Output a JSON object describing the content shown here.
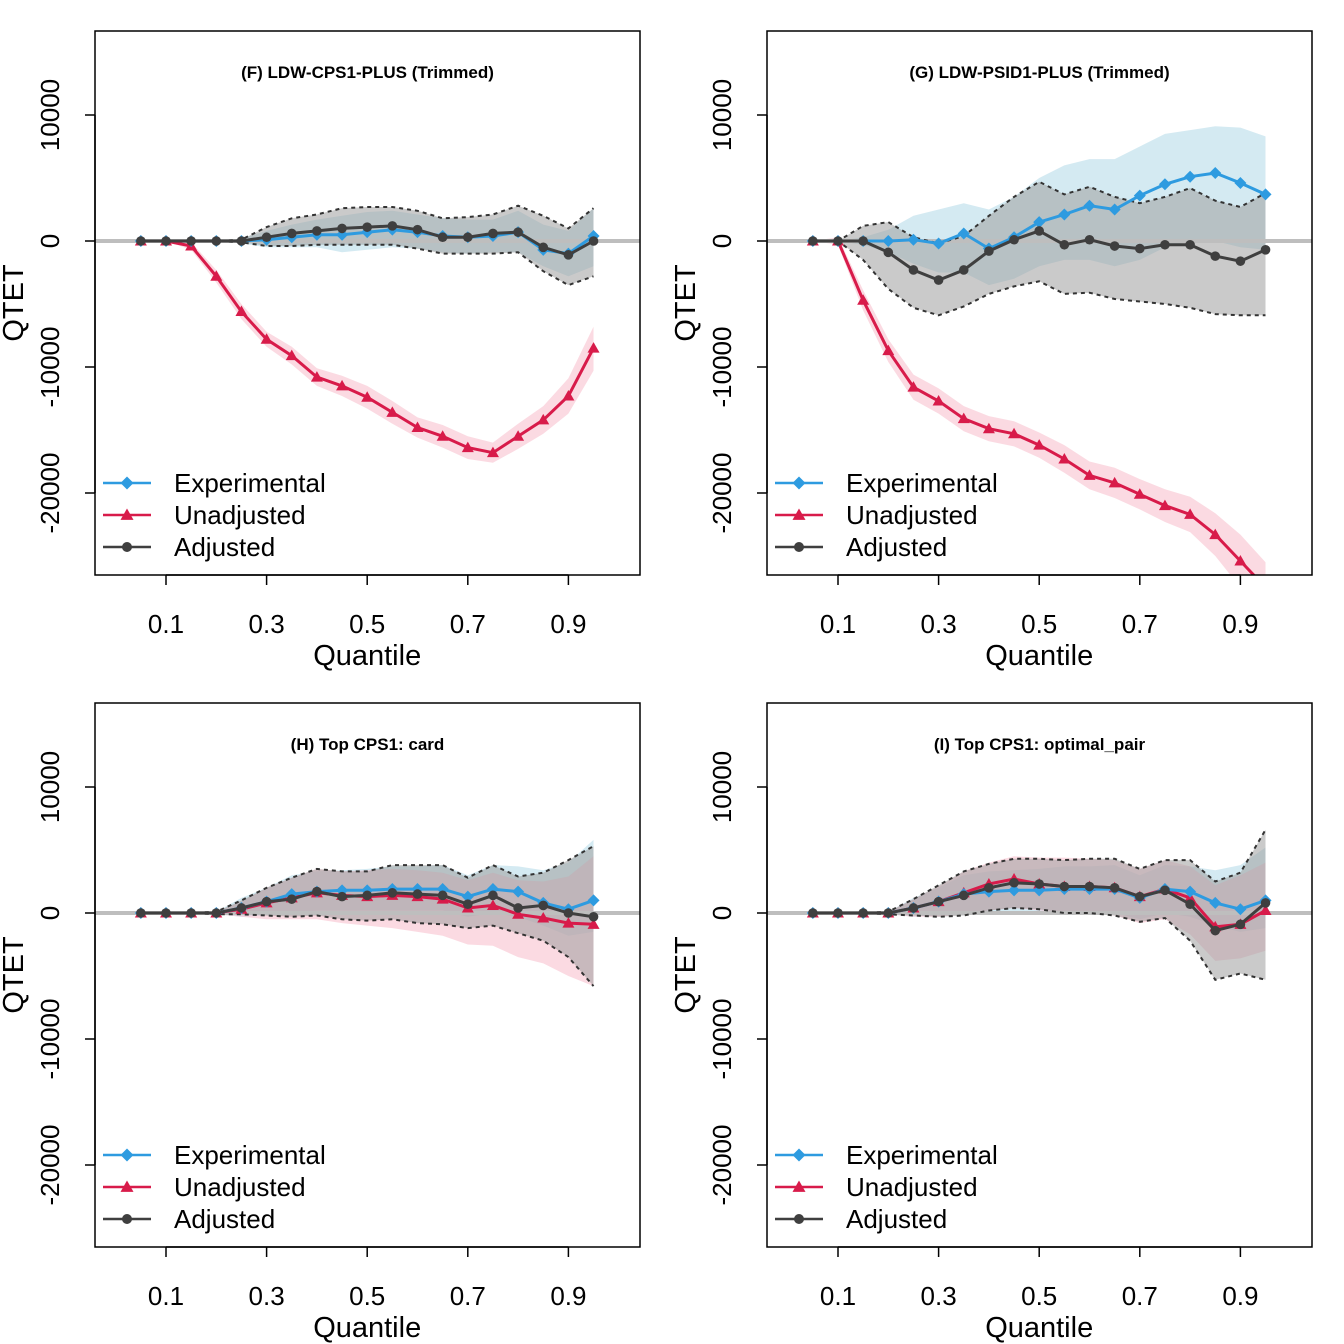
{
  "colors": {
    "experimental": "#2E9BE0",
    "unadjusted": "#D81B4A",
    "adjusted": "#3F3F3F",
    "ci_experimental": "#A9D6E5",
    "ci_unadjusted": "#F7B5C5",
    "ci_adjusted": "#9E9E9E",
    "zero_line": "#BEBEBE"
  },
  "chart_data": [
    {
      "type": "line",
      "title": "(F) LDW-CPS1-PLUS (Trimmed)",
      "xlabel": "Quantile",
      "ylabel": "QTET",
      "xticks": [
        "0.1",
        "0.3",
        "0.5",
        "0.7",
        "0.9"
      ],
      "yticks": [
        "-20000",
        "-10000",
        "0",
        "10000"
      ],
      "xlim": [
        0.0,
        1.0
      ],
      "ylim": [
        -26500,
        16800
      ],
      "legend_position": "bottom-left",
      "x": [
        0.05,
        0.1,
        0.15,
        0.2,
        0.25,
        0.3,
        0.35,
        0.4,
        0.45,
        0.5,
        0.55,
        0.6,
        0.65,
        0.7,
        0.75,
        0.8,
        0.85,
        0.9,
        0.95
      ],
      "series": [
        {
          "name": "Experimental",
          "marker": "diamond",
          "values": [
            0,
            0,
            0,
            0,
            0,
            100,
            300,
            500,
            500,
            700,
            900,
            700,
            400,
            300,
            400,
            700,
            -700,
            -1000,
            400
          ],
          "ci_low": [
            0,
            0,
            0,
            0,
            -200,
            -500,
            -500,
            -500,
            -900,
            -700,
            -500,
            -600,
            -900,
            -1000,
            -900,
            -900,
            -2000,
            -2800,
            -2000
          ],
          "ci_high": [
            0,
            0,
            0,
            0,
            200,
            800,
            1300,
            1700,
            2000,
            2300,
            2400,
            2100,
            1800,
            1700,
            1700,
            2400,
            1300,
            800,
            2600
          ]
        },
        {
          "name": "Unadjusted",
          "marker": "triangle",
          "values": [
            0,
            0,
            -400,
            -2800,
            -5600,
            -7800,
            -9100,
            -10800,
            -11500,
            -12400,
            -13600,
            -14800,
            -15500,
            -16400,
            -16800,
            -15500,
            -14200,
            -12300,
            -8500
          ],
          "ci_low": [
            0,
            0,
            -700,
            -3300,
            -6200,
            -8400,
            -9800,
            -11500,
            -12300,
            -13300,
            -14500,
            -15600,
            -16400,
            -17300,
            -17600,
            -16500,
            -15300,
            -13700,
            -10300
          ],
          "ci_high": [
            0,
            0,
            -100,
            -2300,
            -5000,
            -7200,
            -8400,
            -10100,
            -10700,
            -11500,
            -12700,
            -14000,
            -14600,
            -15500,
            -16000,
            -14500,
            -13100,
            -10900,
            -6800
          ]
        },
        {
          "name": "Adjusted",
          "marker": "circle",
          "values": [
            0,
            0,
            0,
            0,
            0,
            300,
            600,
            800,
            1000,
            1100,
            1200,
            900,
            300,
            300,
            600,
            700,
            -500,
            -1100,
            0
          ],
          "ci_low": [
            0,
            0,
            0,
            0,
            -100,
            -400,
            -400,
            -300,
            -300,
            -300,
            -300,
            -600,
            -1000,
            -1000,
            -1000,
            -900,
            -2400,
            -3500,
            -2800
          ],
          "ci_high": [
            0,
            0,
            0,
            0,
            100,
            1100,
            1800,
            2100,
            2600,
            2700,
            2700,
            2400,
            1800,
            1900,
            2100,
            2800,
            2000,
            1000,
            2600
          ]
        }
      ]
    },
    {
      "type": "line",
      "title": "(G) LDW-PSID1-PLUS (Trimmed)",
      "xlabel": "Quantile",
      "ylabel": "QTET",
      "xticks": [
        "0.1",
        "0.3",
        "0.5",
        "0.7",
        "0.9"
      ],
      "yticks": [
        "-20000",
        "-10000",
        "0",
        "10000"
      ],
      "xlim": [
        0.0,
        1.0
      ],
      "ylim": [
        -26500,
        16800
      ],
      "legend_position": "bottom-left",
      "x": [
        0.05,
        0.1,
        0.15,
        0.2,
        0.25,
        0.3,
        0.35,
        0.4,
        0.45,
        0.5,
        0.55,
        0.6,
        0.65,
        0.7,
        0.75,
        0.8,
        0.85,
        0.9,
        0.95
      ],
      "series": [
        {
          "name": "Experimental",
          "marker": "diamond",
          "values": [
            0,
            0,
            0,
            0,
            100,
            -200,
            600,
            -600,
            300,
            1500,
            2100,
            2800,
            2500,
            3600,
            4500,
            5100,
            5400,
            4600,
            3700
          ],
          "ci_low": [
            0,
            0,
            -300,
            -900,
            -1800,
            -2500,
            -2500,
            -3500,
            -3000,
            -2000,
            -1500,
            -1500,
            -2000,
            -1500,
            -500,
            0,
            0,
            -500,
            -700
          ],
          "ci_high": [
            0,
            0,
            300,
            900,
            2000,
            2500,
            3000,
            2500,
            3500,
            5000,
            6000,
            6500,
            6500,
            7500,
            8500,
            8800,
            9100,
            9000,
            8300
          ]
        },
        {
          "name": "Unadjusted",
          "marker": "triangle",
          "values": [
            0,
            0,
            -4700,
            -8700,
            -11600,
            -12700,
            -14100,
            -14900,
            -15300,
            -16200,
            -17300,
            -18600,
            -19200,
            -20100,
            -21000,
            -21700,
            -23300,
            -25400,
            -27500
          ],
          "ci_low": [
            0,
            -300,
            -5500,
            -9600,
            -12600,
            -13700,
            -15100,
            -15900,
            -16300,
            -17200,
            -18400,
            -19700,
            -20400,
            -21300,
            -22300,
            -23100,
            -25000,
            -27500,
            -29500
          ],
          "ci_high": [
            0,
            300,
            -3900,
            -7800,
            -10600,
            -11700,
            -13100,
            -13900,
            -14300,
            -15200,
            -16200,
            -17500,
            -18000,
            -18900,
            -19700,
            -20300,
            -21600,
            -23300,
            -25500
          ]
        },
        {
          "name": "Adjusted",
          "marker": "circle",
          "values": [
            0,
            0,
            0,
            -900,
            -2300,
            -3100,
            -2300,
            -800,
            100,
            800,
            -300,
            100,
            -400,
            -600,
            -300,
            -300,
            -1200,
            -1600,
            -700
          ],
          "ci_low": [
            0,
            0,
            -1500,
            -3800,
            -5300,
            -5900,
            -5200,
            -4200,
            -3600,
            -3200,
            -4200,
            -4100,
            -4600,
            -4800,
            -5000,
            -5300,
            -5800,
            -5900,
            -5900
          ],
          "ci_high": [
            0,
            0,
            1200,
            1500,
            300,
            -200,
            400,
            2000,
            3500,
            4700,
            3700,
            4300,
            3500,
            3000,
            3500,
            4200,
            3200,
            2700,
            3800
          ]
        }
      ]
    },
    {
      "type": "line",
      "title": "(H) Top CPS1: card",
      "xlabel": "Quantile",
      "ylabel": "QTET",
      "xticks": [
        "0.1",
        "0.3",
        "0.5",
        "0.7",
        "0.9"
      ],
      "yticks": [
        "-20000",
        "-10000",
        "0",
        "10000"
      ],
      "xlim": [
        0.0,
        1.0
      ],
      "ylim": [
        -26500,
        16800
      ],
      "legend_position": "bottom-left",
      "x": [
        0.05,
        0.1,
        0.15,
        0.2,
        0.25,
        0.3,
        0.35,
        0.4,
        0.45,
        0.5,
        0.55,
        0.6,
        0.65,
        0.7,
        0.75,
        0.8,
        0.85,
        0.9,
        0.95
      ],
      "series": [
        {
          "name": "Experimental",
          "marker": "diamond",
          "values": [
            0,
            0,
            0,
            0,
            400,
            900,
            1500,
            1700,
            1800,
            1800,
            1900,
            1900,
            1900,
            1300,
            1900,
            1700,
            800,
            300,
            1000
          ],
          "ci_low": [
            0,
            0,
            0,
            -100,
            -300,
            -200,
            0,
            200,
            200,
            200,
            200,
            200,
            200,
            -300,
            0,
            -300,
            -1000,
            -1800,
            -1500
          ],
          "ci_high": [
            0,
            0,
            0,
            100,
            1200,
            2000,
            3000,
            3300,
            3400,
            3500,
            3700,
            3700,
            3800,
            3000,
            3800,
            3700,
            3400,
            4000,
            5800
          ]
        },
        {
          "name": "Unadjusted",
          "marker": "triangle",
          "values": [
            0,
            0,
            0,
            0,
            300,
            800,
            1200,
            1600,
            1400,
            1300,
            1400,
            1300,
            1100,
            400,
            600,
            -100,
            -400,
            -800,
            -900
          ],
          "ci_low": [
            0,
            0,
            0,
            -100,
            -300,
            -500,
            -500,
            -500,
            -800,
            -1000,
            -1200,
            -1500,
            -1800,
            -2500,
            -2600,
            -3500,
            -4000,
            -5000,
            -5800
          ],
          "ci_high": [
            0,
            0,
            0,
            100,
            900,
            2000,
            2800,
            3500,
            3300,
            3400,
            3500,
            3400,
            3200,
            2600,
            3200,
            2600,
            2500,
            2900,
            4500
          ]
        },
        {
          "name": "Adjusted",
          "marker": "circle",
          "values": [
            0,
            0,
            0,
            0,
            400,
            900,
            1100,
            1700,
            1300,
            1400,
            1600,
            1500,
            1400,
            700,
            1400,
            400,
            600,
            0,
            -300
          ],
          "ci_low": [
            0,
            0,
            0,
            -100,
            -100,
            -200,
            -300,
            -200,
            -500,
            -600,
            -500,
            -800,
            -900,
            -1200,
            -1000,
            -1600,
            -2200,
            -3500,
            -5800
          ],
          "ci_high": [
            0,
            0,
            0,
            100,
            1000,
            2000,
            2800,
            3500,
            3300,
            3300,
            3800,
            3800,
            3800,
            2800,
            3800,
            2900,
            3200,
            4200,
            5300
          ]
        }
      ]
    },
    {
      "type": "line",
      "title": "(I) Top CPS1: optimal_pair",
      "xlabel": "Quantile",
      "ylabel": "QTET",
      "xticks": [
        "0.1",
        "0.3",
        "0.5",
        "0.7",
        "0.9"
      ],
      "yticks": [
        "-20000",
        "-10000",
        "0",
        "10000"
      ],
      "xlim": [
        0.0,
        1.0
      ],
      "ylim": [
        -26500,
        16800
      ],
      "legend_position": "bottom-left",
      "x": [
        0.05,
        0.1,
        0.15,
        0.2,
        0.25,
        0.3,
        0.35,
        0.4,
        0.45,
        0.5,
        0.55,
        0.6,
        0.65,
        0.7,
        0.75,
        0.8,
        0.85,
        0.9,
        0.95
      ],
      "series": [
        {
          "name": "Experimental",
          "marker": "diamond",
          "values": [
            0,
            0,
            0,
            0,
            400,
            900,
            1500,
            1700,
            1800,
            1800,
            1900,
            1900,
            1900,
            1200,
            1900,
            1700,
            800,
            300,
            1000
          ],
          "ci_low": [
            0,
            0,
            0,
            -100,
            -300,
            -200,
            0,
            0,
            0,
            0,
            0,
            0,
            0,
            -500,
            0,
            -300,
            -1000,
            -1500,
            -1200
          ],
          "ci_high": [
            0,
            0,
            0,
            100,
            1200,
            2000,
            3000,
            3300,
            3400,
            3500,
            3700,
            3700,
            3800,
            3000,
            3800,
            3700,
            3400,
            3800,
            5200
          ]
        },
        {
          "name": "Unadjusted",
          "marker": "triangle",
          "values": [
            0,
            0,
            0,
            0,
            400,
            900,
            1600,
            2300,
            2700,
            2300,
            2100,
            2100,
            2000,
            1300,
            1900,
            1200,
            -1100,
            -900,
            200
          ],
          "ci_low": [
            0,
            0,
            0,
            -100,
            -300,
            -300,
            -100,
            200,
            400,
            200,
            0,
            0,
            -200,
            -800,
            -500,
            -1700,
            -3800,
            -3600,
            -3000
          ],
          "ci_high": [
            0,
            0,
            0,
            100,
            1100,
            2100,
            3300,
            4000,
            4500,
            4400,
            4400,
            4300,
            4200,
            3500,
            4200,
            3700,
            2200,
            3000,
            4000
          ]
        },
        {
          "name": "Adjusted",
          "marker": "circle",
          "values": [
            0,
            0,
            0,
            0,
            400,
            900,
            1400,
            2000,
            2400,
            2300,
            2100,
            2100,
            2000,
            1300,
            1800,
            700,
            -1400,
            -900,
            800
          ],
          "ci_low": [
            0,
            0,
            0,
            -100,
            -200,
            -300,
            -200,
            200,
            400,
            300,
            0,
            0,
            -200,
            -700,
            -400,
            -2200,
            -5300,
            -4800,
            -5300
          ],
          "ci_high": [
            0,
            0,
            0,
            100,
            1100,
            2200,
            3300,
            3900,
            4300,
            4300,
            4200,
            4300,
            4300,
            3500,
            4200,
            4200,
            2500,
            3200,
            6600
          ]
        }
      ]
    }
  ]
}
